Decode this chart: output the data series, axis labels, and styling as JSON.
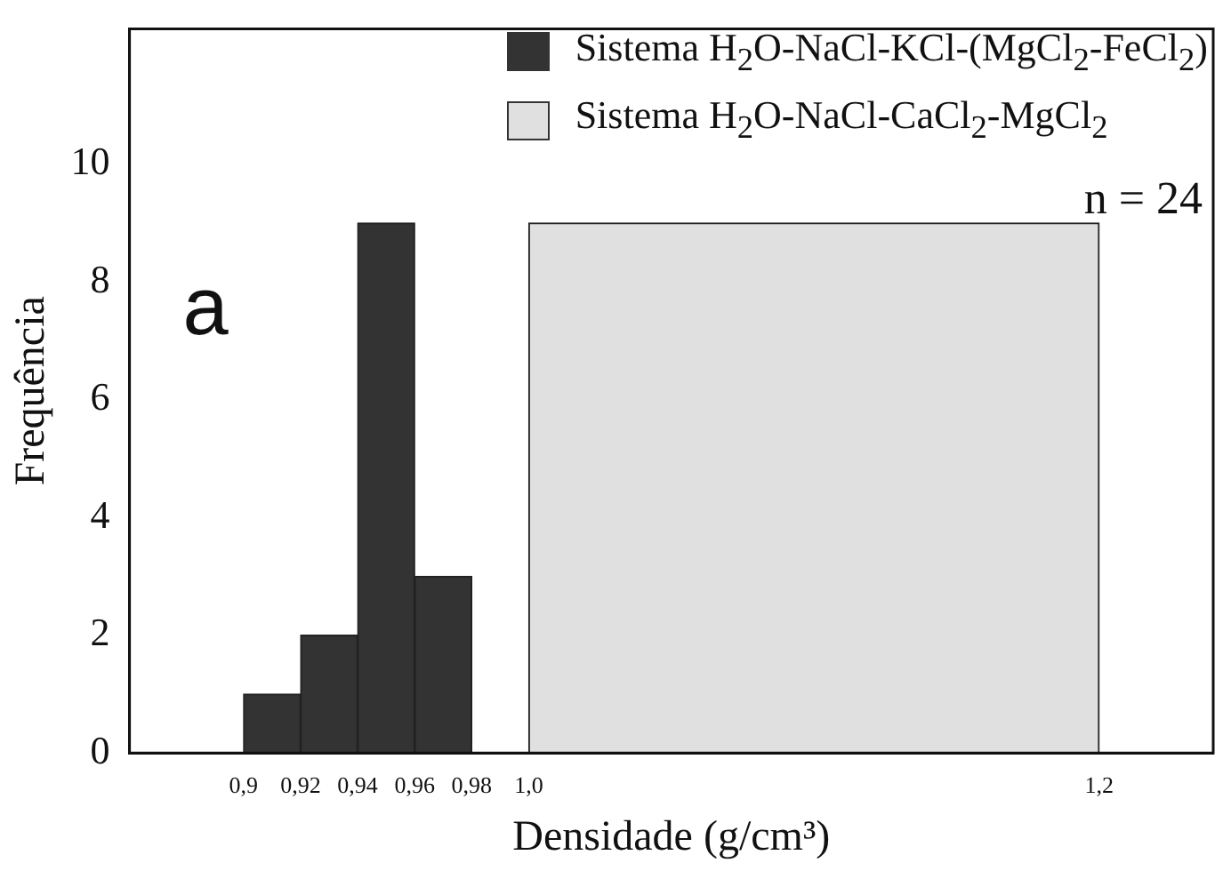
{
  "chart_data": {
    "type": "histogram",
    "xlabel": "Densidade (g/cm³)",
    "ylabel": "Frequência",
    "bins": [
      0.9,
      0.92,
      0.94,
      0.96,
      0.98,
      1.0,
      1.2
    ],
    "series": [
      {
        "name": "Sistema H$_{2}$O-NaCl-KCl-(MgCl$_{2}$-FeCl$_{2}$)",
        "color": "#333333",
        "values": [
          1,
          2,
          9,
          3,
          null,
          null
        ]
      },
      {
        "name": "Sistema H$_{2}$O-NaCl-CaCl$_{2}$-MgCl$_{2}$",
        "color": "#e0e0e0",
        "values": [
          null,
          null,
          null,
          null,
          null,
          9
        ]
      }
    ],
    "xticks": [
      {
        "value": 0.9,
        "label": "0,9"
      },
      {
        "value": 0.92,
        "label": "0,92"
      },
      {
        "value": 0.94,
        "label": "0,94"
      },
      {
        "value": 0.96,
        "label": "0,96"
      },
      {
        "value": 0.98,
        "label": "0,98"
      },
      {
        "value": 1.0,
        "label": "1,0"
      },
      {
        "value": 1.2,
        "label": "1,2"
      }
    ],
    "xlim": [
      0.86,
      1.24
    ],
    "ylim": [
      0,
      12.3
    ],
    "yticks": [
      0,
      2,
      4,
      6,
      8,
      10
    ],
    "legend": "top right",
    "grid": false,
    "annotations": [
      "a",
      "n = 24"
    ]
  }
}
